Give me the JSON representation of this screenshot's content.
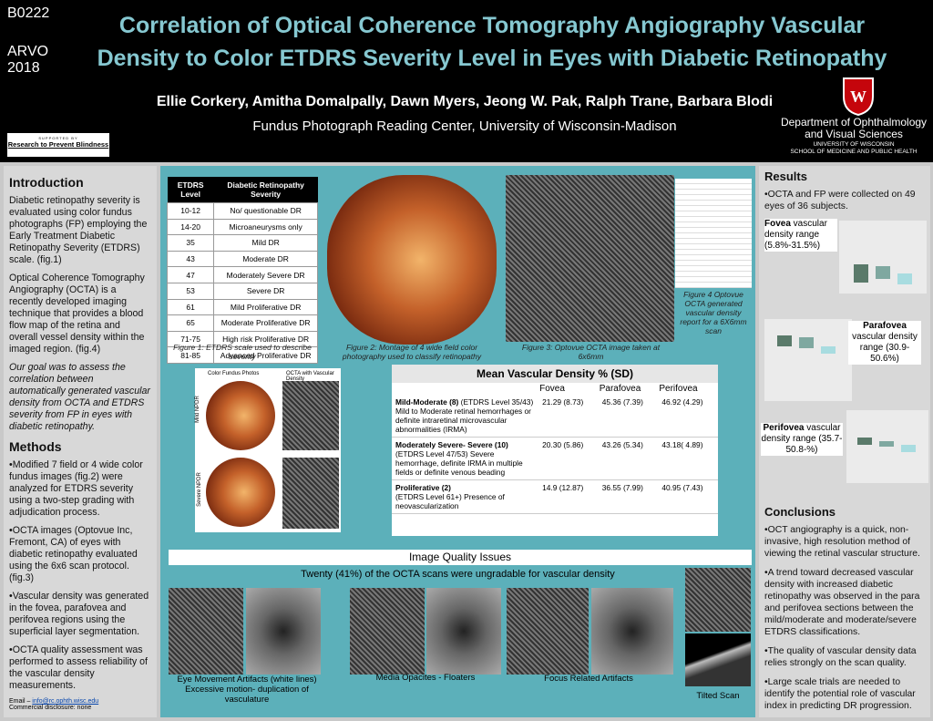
{
  "header": {
    "code": "B0222",
    "meeting": "ARVO",
    "year": "2018",
    "title_lines": [
      "Correlation of Optical Coherence Tomography Angiography Vascular",
      "Density to Color ETDRS Severity Level in Eyes with Diabetic Retinopathy"
    ],
    "authors": "Ellie Corkery, Amitha Domalpally, Dawn Myers, Jeong W. Pak, Ralph Trane, Barbara Blodi",
    "affiliation": "Fundus Photograph Reading Center, University of Wisconsin-Madison",
    "sponsor_top": "SUPPORTED BY",
    "sponsor": "Research to Prevent Blindness",
    "department_lines": [
      "Department of Ophthalmology",
      "and Visual Sciences"
    ],
    "university": "UNIVERSITY OF WISCONSIN",
    "school": "SCHOOL OF MEDICINE AND PUBLIC HEALTH"
  },
  "introduction": {
    "heading": "Introduction",
    "paragraphs": [
      "Diabetic retinopathy severity is evaluated using color fundus photographs (FP) employing the Early Treatment Diabetic Retinopathy Severity (ETDRS) scale. (fig.1)",
      "Optical Coherence Tomography Angiography (OCTA) is a recently developed imaging technique that provides a blood flow map of the retina and overall vessel density within the imaged region. (fig.4)"
    ],
    "goal": "Our goal was to assess the correlation between automatically generated vascular density from OCTA  and ETDRS severity from FP in eyes with diabetic retinopathy."
  },
  "methods": {
    "heading": "Methods",
    "bullets": [
      "•Modified 7 field or 4 wide color fundus images (fig.2) were analyzed for ETDRS severity using a two-step grading with adjudication process.",
      "•OCTA images (Optovue Inc, Fremont, CA) of eyes with diabetic retinopathy evaluated using the 6x6 scan protocol.(fig.3)",
      "•Vascular density was generated in the fovea, parafovea and perifovea regions using the superficial layer segmentation.",
      "•OCTA quality assessment was performed to assess reliability of the vascular density measurements."
    ]
  },
  "footer": {
    "email_label": "Email – ",
    "email": "info@rc.ophth.wisc.edu",
    "disclosure": "Commercial disclosure: none"
  },
  "etdrs_table": {
    "headers": [
      "ETDRS Level",
      "Diabetic Retinopathy Severity"
    ],
    "rows": [
      [
        "10-12",
        "No/ questionable DR"
      ],
      [
        "14-20",
        "Microaneurysms only"
      ],
      [
        "35",
        "Mild DR"
      ],
      [
        "43",
        "Moderate DR"
      ],
      [
        "47",
        "Moderately Severe DR"
      ],
      [
        "53",
        "Severe DR"
      ],
      [
        "61",
        "Mild Proliferative DR"
      ],
      [
        "65",
        "Moderate Proliferative DR"
      ],
      [
        "71-75",
        "High risk Proliferative DR"
      ],
      [
        "81-85",
        "Advanced Proliferative DR"
      ]
    ]
  },
  "figures": {
    "fig1": "Figure  1: ETDRS scale used to describe severity",
    "fig2": "Figure 2: Montage of  4 wide field color photography used to classify retinopathy",
    "fig3": "Figure 3: Optovue OCTA image taken at 6x6mm",
    "fig4": "Figure 4 Optovue OCTA  generated vascular density report  for a 6X6mm scan"
  },
  "inset": {
    "left_label": "Color Fundus Photos",
    "right_label": "OCTA with Vascular Density",
    "rows": [
      "Mild NPDR",
      "Severe NPDR"
    ]
  },
  "density_table": {
    "title": "Mean Vascular Density % (SD)",
    "columns": [
      "Fovea",
      "Parafovea",
      "Perifovea"
    ],
    "rows": [
      {
        "label_bold": "Mild-Moderate (8)",
        "label_rest": " (ETDRS Level 35/43)",
        "description": "Mild to Moderate retinal hemorrhages or definite intraretinal microvascular abnormalities (IRMA)",
        "values": [
          "21.29 (8.73)",
          "45.36 (7.39)",
          "46.92 (4.29)"
        ]
      },
      {
        "label_bold": "Moderately Severe- Severe (10)",
        "label_rest": "",
        "description": "(ETDRS Level 47/53) Severe hemorrhage, definite IRMA in multiple fields or definite venous beading",
        "values": [
          "20.30 (5.86)",
          "43.26 (5.34)",
          "43.18( 4.89)"
        ]
      },
      {
        "label_bold": "Proliferative (2)",
        "label_rest": "",
        "description": "(ETDRS Level 61+) Presence of neovascularization",
        "values": [
          "14.9 (12.87)",
          "36.55 (7.99)",
          "40.95 (7.43)"
        ]
      }
    ]
  },
  "quality": {
    "heading": "Image Quality Issues",
    "summary": "Twenty (41%) of the OCTA  scans were ungradable for vascular density",
    "captions": [
      "Eye Movement Artifacts (white lines) Excessive motion- duplication of vasculature",
      "Media Opacites - Floaters",
      "Focus Related Artifacts",
      "Tilted Scan"
    ]
  },
  "results": {
    "heading": "Results",
    "bullet": "•OCTA and FP were collected on 49 eyes of 36 subjects.",
    "fovea": {
      "bold": "Fovea",
      "rest": " vascular density range (5.8%-31.5%)"
    },
    "parafovea": {
      "bold": "Parafovea",
      "rest": " vascular density range (30.9-50.6%)"
    },
    "perifovea": {
      "bold": "Perifovea",
      "rest": " vascular density range (35.7-50.8-%)"
    }
  },
  "conclusions": {
    "heading": "Conclusions",
    "bullets": [
      "•OCT angiography is a quick, non-invasive, high resolution method of viewing the retinal vascular structure.",
      "•A trend toward decreased vascular density with increased diabetic retinopathy was observed in the para and perifovea sections between the mild/moderate and moderate/severe ETDRS classifications.",
      "•The quality of vascular density data relies strongly on the scan quality.",
      "•Large scale trials are needed to identify the potential role of vascular index in predicting DR progression."
    ]
  }
}
